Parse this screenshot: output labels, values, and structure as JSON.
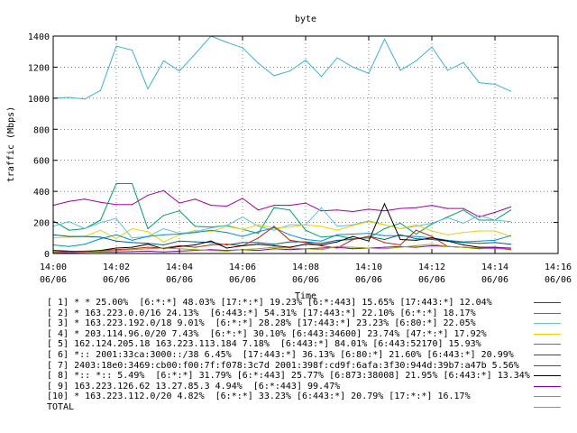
{
  "chart_data": {
    "type": "line",
    "title": "byte",
    "xlabel": "Time",
    "ylabel": "traffic (Mbps)",
    "ylim": [
      0,
      1400
    ],
    "yticks": [
      "0",
      "200",
      "400",
      "600",
      "800",
      "1000",
      "1200",
      "1400"
    ],
    "xtick_labels": [
      {
        "time": "14:00",
        "date": "06/06"
      },
      {
        "time": "14:02",
        "date": "06/06"
      },
      {
        "time": "14:04",
        "date": "06/06"
      },
      {
        "time": "14:06",
        "date": "06/06"
      },
      {
        "time": "14:08",
        "date": "06/06"
      },
      {
        "time": "14:10",
        "date": "06/06"
      },
      {
        "time": "14:12",
        "date": "06/06"
      },
      {
        "time": "14:14",
        "date": "06/06"
      },
      {
        "time": "14:16",
        "date": "06/06"
      }
    ],
    "x": [
      "14:00",
      "14:00:30",
      "14:01",
      "14:01:30",
      "14:02",
      "14:02:30",
      "14:03",
      "14:03:30",
      "14:04",
      "14:04:30",
      "14:05",
      "14:05:30",
      "14:06",
      "14:06:30",
      "14:07",
      "14:07:30",
      "14:08",
      "14:08:30",
      "14:09",
      "14:09:30",
      "14:10",
      "14:10:30",
      "14:11",
      "14:11:30",
      "14:12",
      "14:12:30",
      "14:13",
      "14:13:30",
      "14:14",
      "14:14:30"
    ],
    "legend_placement": "bottom",
    "series": [
      {
        "name": "[ 1] * * 25.00%  [6:*:*] 48.03% [17:*:*] 19.23% [6:*:443] 15.65% [17:443:*] 12.04%",
        "color": "#a000a0",
        "values": [
          310,
          335,
          350,
          330,
          315,
          315,
          375,
          405,
          325,
          350,
          310,
          305,
          355,
          280,
          310,
          310,
          325,
          275,
          280,
          270,
          285,
          275,
          290,
          295,
          310,
          290,
          290,
          235,
          265,
          300
        ]
      },
      {
        "name": "[ 2] * 163.223.0.0/16 24.13%  [6:443:*] 54.31% [17:443:*] 22.10% [6:*:*] 18.17%",
        "color": "#00a060",
        "values": [
          210,
          150,
          160,
          215,
          450,
          450,
          160,
          245,
          275,
          175,
          170,
          180,
          155,
          130,
          295,
          280,
          150,
          105,
          115,
          95,
          100,
          160,
          195,
          125,
          190,
          235,
          280,
          215,
          215,
          280
        ]
      },
      {
        "name": "[ 3] * 163.223.192.0/18 9.01%  [6:*:*] 28.28% [17:443:*] 23.23% [6:80:*] 22.05%",
        "color": "#60c0e0",
        "values": [
          175,
          205,
          160,
          200,
          225,
          100,
          110,
          160,
          130,
          140,
          165,
          180,
          235,
          175,
          150,
          185,
          185,
          295,
          175,
          185,
          210,
          185,
          160,
          175,
          195,
          230,
          195,
          245,
          215,
          205
        ]
      },
      {
        "name": "[ 4] * 203.114.96.0/20 7.43%  [6:*:*] 30.10% [6:443:34600] 23.74% [47:*:*] 17.92%",
        "color": "#f0d000",
        "values": [
          100,
          105,
          110,
          150,
          95,
          160,
          140,
          75,
          120,
          150,
          140,
          175,
          155,
          185,
          165,
          170,
          185,
          175,
          150,
          180,
          205,
          185,
          160,
          185,
          145,
          120,
          135,
          145,
          145,
          110
        ]
      },
      {
        "name": "[ 5] 162.124.205.18 163.223.113.184 7.18%  [6:443:*] 84.01% [6:443:52170] 15.93%",
        "color": "#0090d0",
        "values": [
          55,
          45,
          60,
          95,
          120,
          85,
          110,
          120,
          125,
          135,
          150,
          135,
          110,
          140,
          165,
          120,
          90,
          80,
          120,
          125,
          130,
          115,
          115,
          110,
          100,
          85,
          75,
          80,
          85,
          115
        ]
      },
      {
        "name": "[ 6] *:: 2001:33ca:3000::/38 6.45%  [17:443:*] 36.13% [6:80:*] 21.60% [6:443:*] 20.99%",
        "color": "#006080",
        "values": [
          120,
          110,
          110,
          105,
          80,
          70,
          65,
          55,
          80,
          75,
          70,
          55,
          70,
          70,
          60,
          75,
          75,
          65,
          85,
          90,
          110,
          90,
          120,
          95,
          90,
          80,
          70,
          65,
          70,
          60
        ]
      },
      {
        "name": "[ 7] 2403:18e0:3469:cb00:f00:7f:f078:3c7d 2001:398f:cd9f:6afa:3f30:944d:39b7:a47b 5.56%",
        "color": "#d02000",
        "values": [
          10,
          12,
          15,
          20,
          25,
          30,
          40,
          35,
          50,
          40,
          55,
          60,
          50,
          100,
          175,
          85,
          70,
          50,
          35,
          90,
          110,
          70,
          55,
          150,
          110,
          45,
          40,
          30,
          35,
          25
        ]
      },
      {
        "name": "[ 8] *:: *:: 5.49%  [6:*:*] 31.79% [6:*:443] 25.77% [6:873:38008] 21.95% [6:443:*] 13.34%",
        "color": "#000000",
        "values": [
          20,
          15,
          10,
          20,
          35,
          40,
          60,
          30,
          45,
          55,
          80,
          35,
          50,
          60,
          50,
          40,
          60,
          55,
          75,
          110,
          80,
          320,
          90,
          85,
          100,
          80,
          55,
          40,
          40,
          30
        ]
      },
      {
        "name": "[ 9] 163.223.126.62 13.27.85.3 4.94%  [6:*:443] 99.47%",
        "color": "#8000c0",
        "values": [
          5,
          5,
          8,
          10,
          10,
          12,
          15,
          10,
          15,
          20,
          25,
          20,
          25,
          20,
          30,
          25,
          30,
          35,
          40,
          30,
          35,
          40,
          45,
          40,
          50,
          45,
          40,
          35,
          40,
          35
        ]
      },
      {
        "name": "[10] * 163.223.112.0/20 4.82%  [6:*:*] 33.23% [6:443:*] 20.79% [17:*:*] 16.17%",
        "color": "#a0a000",
        "values": [
          5,
          10,
          8,
          15,
          20,
          25,
          30,
          35,
          30,
          25,
          20,
          15,
          25,
          30,
          40,
          35,
          30,
          25,
          45,
          40,
          35,
          30,
          40,
          50,
          60,
          45,
          40,
          35,
          30,
          30
        ]
      },
      {
        "name": "TOTAL",
        "color": "#40b0d0",
        "values": [
          1000,
          1005,
          995,
          1050,
          1335,
          1310,
          1060,
          1240,
          1175,
          1285,
          1400,
          1360,
          1325,
          1225,
          1145,
          1175,
          1245,
          1140,
          1260,
          1200,
          1160,
          1380,
          1180,
          1240,
          1330,
          1180,
          1230,
          1100,
          1090,
          1045
        ]
      }
    ]
  }
}
